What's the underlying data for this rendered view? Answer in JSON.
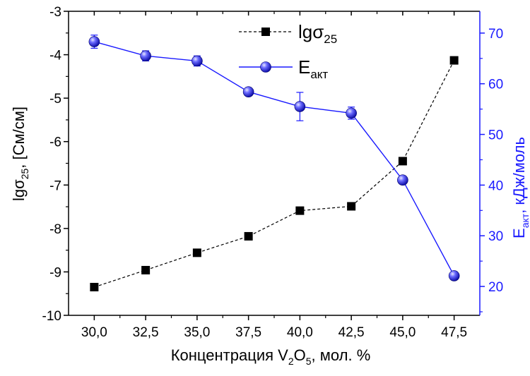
{
  "chart_data": {
    "type": "line",
    "x_ticks": [
      "30,0",
      "32,5",
      "35,0",
      "37,5",
      "40,0",
      "42,5",
      "45,0",
      "47,5"
    ],
    "xlim": [
      28.75,
      48.75
    ],
    "xlabel": {
      "pre": "Концентрация V",
      "sub1": "2",
      "mid": "O",
      "sub2": "5",
      "post": ", мол. %"
    },
    "left_axis": {
      "ylim": [
        -10,
        -3
      ],
      "ticks": [
        "-10",
        "-9",
        "-8",
        "-7",
        "-6",
        "-5",
        "-4",
        "-3"
      ],
      "label": {
        "pre": "lgσ",
        "sub": "25",
        "post": ", [См/см]"
      },
      "color": "#000000"
    },
    "right_axis": {
      "ylim": [
        14.3,
        74.3
      ],
      "ticks": [
        "20",
        "30",
        "40",
        "50",
        "60",
        "70"
      ],
      "label": {
        "pre": "E",
        "sub": "акт",
        "post": ", кДж/моль"
      },
      "color": "#1a1aff"
    },
    "series": [
      {
        "axis": "left",
        "marker": "square",
        "line": "dashed",
        "color": "#000000",
        "legend": {
          "pre": "lgσ",
          "sub": "25"
        },
        "x": [
          30.0,
          32.5,
          35.0,
          37.5,
          40.0,
          42.5,
          45.0,
          47.5
        ],
        "y": [
          -9.35,
          -8.96,
          -8.56,
          -8.18,
          -7.59,
          -7.49,
          -6.45,
          -4.13
        ]
      },
      {
        "axis": "right",
        "marker": "sphere",
        "line": "solid",
        "color": "#1a1aff",
        "legend": {
          "pre": "E",
          "sub": "акт"
        },
        "x": [
          30.0,
          32.5,
          35.0,
          37.5,
          40.0,
          42.5,
          45.0,
          47.5
        ],
        "y": [
          68.3,
          65.5,
          64.5,
          58.4,
          55.5,
          54.2,
          41.0,
          22.1
        ],
        "err": [
          1.3,
          1.0,
          1.0,
          0.5,
          2.8,
          1.2,
          0.3,
          0.3
        ]
      }
    ],
    "legend_position": "top-center",
    "grid": false
  }
}
